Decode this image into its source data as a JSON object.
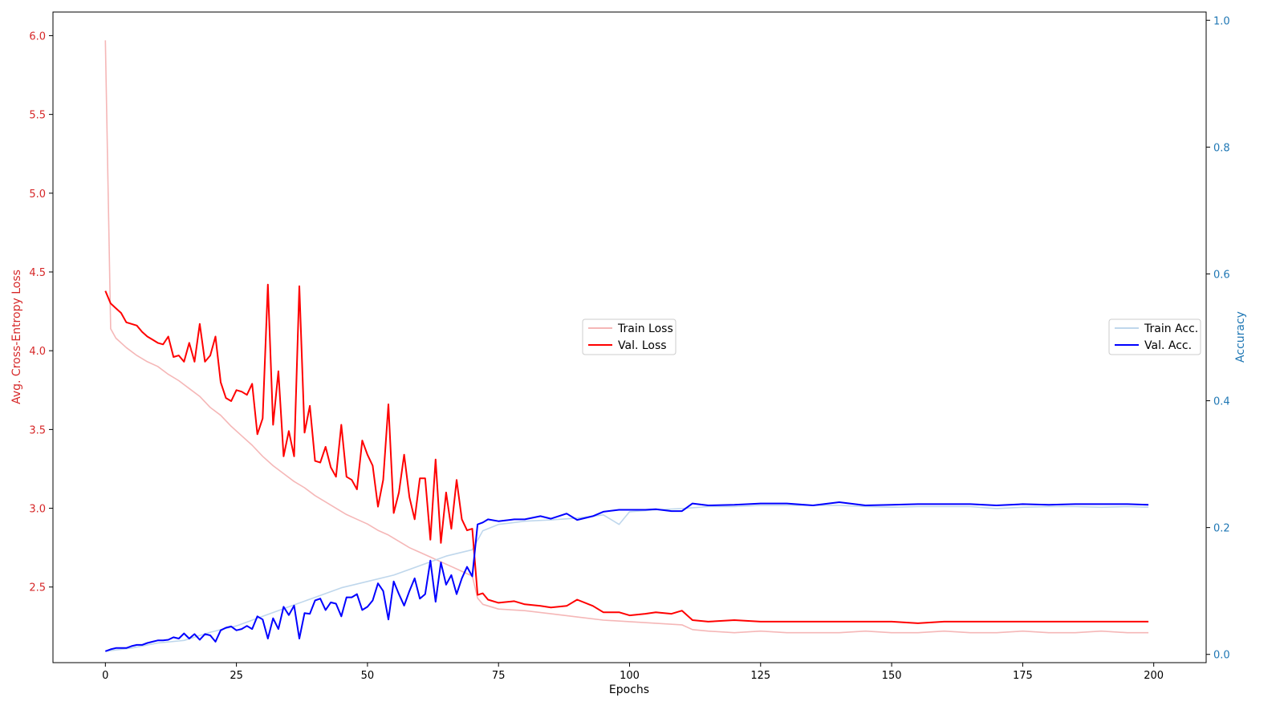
{
  "colors": {
    "train_loss": "#f5b7b7",
    "val_loss": "#ff0000",
    "train_acc": "#bfd7ec",
    "val_acc": "#0000ff",
    "left_axis": "#d62728",
    "right_axis": "#1f77b4"
  },
  "chart_data": {
    "type": "line",
    "xlabel": "Epochs",
    "ylabel_left": "Avg. Cross-Entropy Loss",
    "ylabel_right": "Accuracy",
    "xlim": [
      -10,
      210
    ],
    "ylim_left": [
      2.02,
      6.15
    ],
    "ylim_right": [
      -0.013,
      1.013
    ],
    "x_ticks": [
      0,
      25,
      50,
      75,
      100,
      125,
      150,
      175,
      200
    ],
    "y_left_ticks": [
      2.5,
      3.0,
      3.5,
      4.0,
      4.5,
      5.0,
      5.5,
      6.0
    ],
    "y_right_ticks": [
      0.0,
      0.2,
      0.4,
      0.6,
      0.8,
      1.0
    ],
    "legend_left": {
      "placement": "center-right-of-middle",
      "entries": [
        "Train Loss",
        "Val. Loss"
      ]
    },
    "legend_right": {
      "placement": "center-right",
      "entries": [
        "Train Acc.",
        "Val. Acc."
      ]
    },
    "grid": false,
    "series": [
      {
        "name": "Train Loss",
        "axis": "left",
        "x": [
          0,
          1,
          2,
          4,
          6,
          8,
          10,
          12,
          14,
          16,
          18,
          20,
          22,
          24,
          26,
          28,
          30,
          32,
          34,
          36,
          38,
          40,
          42,
          44,
          46,
          48,
          50,
          52,
          54,
          56,
          58,
          60,
          62,
          64,
          66,
          68,
          70,
          71,
          72,
          75,
          80,
          85,
          90,
          95,
          100,
          105,
          110,
          112,
          115,
          120,
          125,
          130,
          135,
          140,
          145,
          150,
          155,
          160,
          165,
          170,
          175,
          180,
          185,
          190,
          195,
          199
        ],
        "y": [
          5.97,
          4.14,
          4.08,
          4.02,
          3.97,
          3.93,
          3.9,
          3.85,
          3.81,
          3.76,
          3.71,
          3.64,
          3.59,
          3.52,
          3.46,
          3.4,
          3.33,
          3.27,
          3.22,
          3.17,
          3.13,
          3.08,
          3.04,
          3.0,
          2.96,
          2.93,
          2.9,
          2.86,
          2.83,
          2.79,
          2.75,
          2.72,
          2.69,
          2.66,
          2.63,
          2.6,
          2.57,
          2.43,
          2.39,
          2.36,
          2.35,
          2.33,
          2.31,
          2.29,
          2.28,
          2.27,
          2.26,
          2.23,
          2.22,
          2.21,
          2.22,
          2.21,
          2.21,
          2.21,
          2.22,
          2.21,
          2.21,
          2.22,
          2.21,
          2.21,
          2.22,
          2.21,
          2.21,
          2.22,
          2.21,
          2.21
        ]
      },
      {
        "name": "Val. Loss",
        "axis": "left",
        "x": [
          0,
          1,
          2,
          3,
          4,
          5,
          6,
          7,
          8,
          9,
          10,
          11,
          12,
          13,
          14,
          15,
          16,
          17,
          18,
          19,
          20,
          21,
          22,
          23,
          24,
          25,
          26,
          27,
          28,
          29,
          30,
          31,
          32,
          33,
          34,
          35,
          36,
          37,
          38,
          39,
          40,
          41,
          42,
          43,
          44,
          45,
          46,
          47,
          48,
          49,
          50,
          51,
          52,
          53,
          54,
          55,
          56,
          57,
          58,
          59,
          60,
          61,
          62,
          63,
          64,
          65,
          66,
          67,
          68,
          69,
          70,
          71,
          72,
          73,
          75,
          78,
          80,
          83,
          85,
          88,
          90,
          93,
          95,
          98,
          100,
          103,
          105,
          108,
          110,
          112,
          115,
          120,
          125,
          130,
          135,
          140,
          145,
          150,
          155,
          160,
          165,
          170,
          175,
          180,
          185,
          190,
          195,
          199
        ],
        "y": [
          4.38,
          4.3,
          4.27,
          4.24,
          4.18,
          4.17,
          4.16,
          4.12,
          4.09,
          4.07,
          4.05,
          4.04,
          4.09,
          3.96,
          3.97,
          3.93,
          4.05,
          3.93,
          4.17,
          3.93,
          3.97,
          4.09,
          3.8,
          3.7,
          3.68,
          3.75,
          3.74,
          3.72,
          3.79,
          3.47,
          3.57,
          4.42,
          3.53,
          3.87,
          3.33,
          3.49,
          3.33,
          4.41,
          3.48,
          3.65,
          3.3,
          3.29,
          3.39,
          3.26,
          3.2,
          3.53,
          3.2,
          3.18,
          3.12,
          3.43,
          3.34,
          3.27,
          3.01,
          3.18,
          3.66,
          2.97,
          3.1,
          3.34,
          3.07,
          2.93,
          3.19,
          3.19,
          2.8,
          3.31,
          2.78,
          3.1,
          2.87,
          3.18,
          2.93,
          2.86,
          2.87,
          2.45,
          2.46,
          2.42,
          2.4,
          2.41,
          2.39,
          2.38,
          2.37,
          2.38,
          2.42,
          2.38,
          2.34,
          2.34,
          2.32,
          2.33,
          2.34,
          2.33,
          2.35,
          2.29,
          2.28,
          2.29,
          2.28,
          2.28,
          2.28,
          2.28,
          2.28,
          2.28,
          2.27,
          2.28,
          2.28,
          2.28,
          2.28,
          2.28,
          2.28,
          2.28,
          2.28,
          2.28
        ]
      },
      {
        "name": "Train Acc.",
        "axis": "right",
        "x": [
          0,
          5,
          10,
          15,
          20,
          25,
          30,
          35,
          40,
          45,
          50,
          55,
          60,
          65,
          70,
          72,
          75,
          80,
          85,
          90,
          95,
          98,
          100,
          105,
          110,
          115,
          120,
          125,
          130,
          135,
          140,
          145,
          150,
          155,
          160,
          165,
          170,
          175,
          180,
          185,
          190,
          195,
          199
        ],
        "y": [
          0.005,
          0.01,
          0.018,
          0.022,
          0.035,
          0.045,
          0.06,
          0.075,
          0.09,
          0.105,
          0.115,
          0.125,
          0.14,
          0.155,
          0.165,
          0.195,
          0.205,
          0.21,
          0.212,
          0.215,
          0.22,
          0.205,
          0.225,
          0.228,
          0.23,
          0.233,
          0.233,
          0.235,
          0.235,
          0.235,
          0.235,
          0.233,
          0.232,
          0.233,
          0.233,
          0.233,
          0.23,
          0.232,
          0.233,
          0.233,
          0.232,
          0.233,
          0.232
        ]
      },
      {
        "name": "Val. Acc.",
        "axis": "right",
        "x": [
          0,
          1,
          2,
          3,
          4,
          5,
          6,
          7,
          8,
          9,
          10,
          11,
          12,
          13,
          14,
          15,
          16,
          17,
          18,
          19,
          20,
          21,
          22,
          23,
          24,
          25,
          26,
          27,
          28,
          29,
          30,
          31,
          32,
          33,
          34,
          35,
          36,
          37,
          38,
          39,
          40,
          41,
          42,
          43,
          44,
          45,
          46,
          47,
          48,
          49,
          50,
          51,
          52,
          53,
          54,
          55,
          56,
          57,
          58,
          59,
          60,
          61,
          62,
          63,
          64,
          65,
          66,
          67,
          68,
          69,
          70,
          71,
          72,
          73,
          75,
          78,
          80,
          83,
          85,
          88,
          90,
          93,
          95,
          98,
          100,
          103,
          105,
          108,
          110,
          112,
          115,
          120,
          125,
          130,
          135,
          140,
          145,
          150,
          155,
          160,
          165,
          170,
          175,
          180,
          185,
          190,
          195,
          199
        ],
        "y": [
          0.005,
          0.008,
          0.01,
          0.01,
          0.01,
          0.013,
          0.015,
          0.015,
          0.018,
          0.02,
          0.022,
          0.022,
          0.023,
          0.027,
          0.025,
          0.033,
          0.025,
          0.032,
          0.023,
          0.032,
          0.03,
          0.02,
          0.038,
          0.042,
          0.044,
          0.038,
          0.04,
          0.045,
          0.04,
          0.06,
          0.055,
          0.025,
          0.057,
          0.04,
          0.075,
          0.062,
          0.077,
          0.025,
          0.065,
          0.064,
          0.085,
          0.088,
          0.07,
          0.082,
          0.08,
          0.06,
          0.09,
          0.09,
          0.095,
          0.07,
          0.075,
          0.085,
          0.112,
          0.1,
          0.055,
          0.115,
          0.095,
          0.077,
          0.1,
          0.12,
          0.088,
          0.095,
          0.148,
          0.083,
          0.145,
          0.11,
          0.125,
          0.095,
          0.12,
          0.138,
          0.123,
          0.205,
          0.208,
          0.213,
          0.21,
          0.213,
          0.213,
          0.218,
          0.214,
          0.222,
          0.212,
          0.218,
          0.225,
          0.228,
          0.228,
          0.228,
          0.229,
          0.226,
          0.226,
          0.238,
          0.235,
          0.236,
          0.238,
          0.238,
          0.235,
          0.24,
          0.235,
          0.236,
          0.237,
          0.237,
          0.237,
          0.235,
          0.237,
          0.236,
          0.237,
          0.237,
          0.237,
          0.236
        ]
      }
    ]
  }
}
